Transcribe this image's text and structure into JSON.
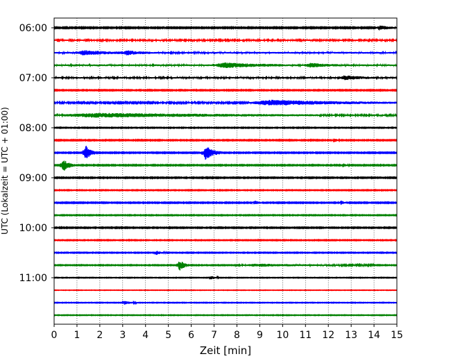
{
  "chart_data": {
    "type": "line",
    "subtype": "seismogram-helicorder",
    "xlabel": "Zeit  [min]",
    "ylabel": "UTC (Lokalzeit = UTC + 01:00)",
    "xlim": [
      0,
      15
    ],
    "x_ticks": [
      0,
      1,
      2,
      3,
      4,
      5,
      6,
      7,
      8,
      9,
      10,
      11,
      12,
      13,
      14,
      15
    ],
    "x_grid": "dotted-vertical",
    "y_tick_labels": [
      "06:00",
      "07:00",
      "08:00",
      "09:00",
      "10:00",
      "11:00"
    ],
    "traces_per_hour": 4,
    "trace_start_times": [
      "06:00",
      "06:15",
      "06:30",
      "06:45",
      "07:00",
      "07:15",
      "07:30",
      "07:45",
      "08:00",
      "08:15",
      "08:30",
      "08:45",
      "09:00",
      "09:15",
      "09:30",
      "09:45",
      "10:00",
      "10:15",
      "10:30",
      "10:45",
      "11:00",
      "11:15",
      "11:30",
      "11:45"
    ],
    "color_cycle": [
      "#000000",
      "#ff0000",
      "#0000ff",
      "#008000"
    ],
    "trace_noise_amplitude": [
      0.7,
      1.0,
      1.2,
      1.2,
      1.1,
      0.6,
      0.9,
      1.0,
      0.5,
      0.6,
      0.6,
      0.6,
      0.6,
      0.5,
      0.6,
      0.5,
      0.6,
      0.5,
      0.5,
      0.5,
      0.4,
      0.3,
      0.4,
      0.4
    ],
    "events": [
      {
        "trace": 0,
        "x": 14.1,
        "duration": 0.9,
        "amp": 1.6
      },
      {
        "trace": 2,
        "x": 1.0,
        "duration": 2.0,
        "amp": 1.4
      },
      {
        "trace": 2,
        "x": 3.0,
        "duration": 1.2,
        "amp": 1.3
      },
      {
        "trace": 3,
        "x": 7.0,
        "duration": 3.0,
        "amp": 1.6
      },
      {
        "trace": 3,
        "x": 11.0,
        "duration": 1.5,
        "amp": 1.2
      },
      {
        "trace": 4,
        "x": 12.5,
        "duration": 1.5,
        "amp": 1.3
      },
      {
        "trace": 6,
        "x": 8.5,
        "duration": 6.5,
        "amp": 1.7
      },
      {
        "trace": 7,
        "x": 0.1,
        "duration": 11.5,
        "amp": 1.3
      },
      {
        "trace": 9,
        "x": 12.2,
        "duration": 0.3,
        "amp": 1.5
      },
      {
        "trace": 10,
        "x": 1.3,
        "duration": 0.5,
        "amp": 5.5
      },
      {
        "trace": 10,
        "x": 6.5,
        "duration": 0.8,
        "amp": 5.0
      },
      {
        "trace": 11,
        "x": 0.3,
        "duration": 0.6,
        "amp": 4.5
      },
      {
        "trace": 11,
        "x": 12.6,
        "duration": 0.3,
        "amp": 1.2
      },
      {
        "trace": 14,
        "x": 8.7,
        "duration": 0.4,
        "amp": 1.5
      },
      {
        "trace": 14,
        "x": 12.5,
        "duration": 0.3,
        "amp": 1.5
      },
      {
        "trace": 18,
        "x": 4.4,
        "duration": 0.5,
        "amp": 1.4
      },
      {
        "trace": 19,
        "x": 5.4,
        "duration": 0.5,
        "amp": 4.0
      },
      {
        "trace": 19,
        "x": 8.0,
        "duration": 6.0,
        "amp": 0.9
      },
      {
        "trace": 20,
        "x": 6.8,
        "duration": 0.4,
        "amp": 1.2
      },
      {
        "trace": 22,
        "x": 3.0,
        "duration": 0.6,
        "amp": 1.3
      }
    ]
  }
}
